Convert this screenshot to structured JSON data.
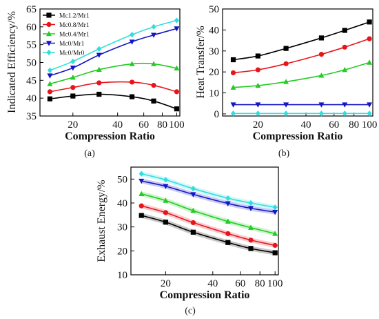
{
  "chart_data": [
    {
      "type": "line",
      "caption": "(a)",
      "xlabel": "Compression Ratio",
      "ylabel": "Indicated Efficiency/%",
      "xscale": "log",
      "xlim": [
        12,
        105
      ],
      "ylim": [
        35,
        65
      ],
      "xticks": [
        20,
        40,
        60,
        80,
        100
      ],
      "yticks": [
        35,
        40,
        45,
        50,
        55,
        60,
        65
      ],
      "legend_position": "top-left",
      "x": [
        14,
        20,
        30,
        50,
        70,
        100
      ],
      "series": [
        {
          "name": "Mc1.2/Mr1",
          "color": "#000000",
          "marker": "square",
          "values": [
            39.8,
            40.6,
            41.1,
            40.4,
            39.2,
            37.0
          ]
        },
        {
          "name": "Mc0.8/Mr1",
          "color": "#e8141b",
          "marker": "circle",
          "values": [
            41.8,
            43.0,
            44.3,
            44.5,
            43.6,
            41.8
          ]
        },
        {
          "name": "Mc0.4/Mr1",
          "color": "#22cc22",
          "marker": "triangle-up",
          "values": [
            44.0,
            45.8,
            48.0,
            49.6,
            49.6,
            48.4
          ]
        },
        {
          "name": "Mc0/Mr1",
          "color": "#1414c8",
          "marker": "triangle-down",
          "values": [
            46.3,
            48.5,
            52.1,
            55.8,
            57.7,
            59.5
          ]
        },
        {
          "name": "Mc0/Mr0",
          "color": "#33dddd",
          "marker": "diamond",
          "values": [
            47.8,
            50.3,
            53.8,
            57.8,
            60.0,
            61.8
          ]
        }
      ]
    },
    {
      "type": "line",
      "caption": "(b)",
      "xlabel": "Compression Ratio",
      "ylabel": "Heat Transfer/%",
      "xscale": "log",
      "xlim": [
        12,
        105
      ],
      "ylim": [
        -1,
        50
      ],
      "xticks": [
        20,
        40,
        60,
        80,
        100
      ],
      "yticks": [
        0,
        10,
        20,
        30,
        40,
        50
      ],
      "x": [
        14,
        20,
        30,
        50,
        70,
        100
      ],
      "series": [
        {
          "name": "Mc1.2/Mr1",
          "color": "#000000",
          "marker": "square",
          "values": [
            25.8,
            27.6,
            31.2,
            36.2,
            39.8,
            43.8
          ]
        },
        {
          "name": "Mc0.8/Mr1",
          "color": "#e8141b",
          "marker": "circle",
          "values": [
            19.6,
            21.0,
            23.9,
            28.4,
            31.8,
            35.8
          ]
        },
        {
          "name": "Mc0.4/Mr1",
          "color": "#22cc22",
          "marker": "triangle-up",
          "values": [
            12.6,
            13.5,
            15.3,
            18.3,
            21.0,
            24.5
          ]
        },
        {
          "name": "Mc0/Mr1",
          "color": "#1414c8",
          "marker": "triangle-down",
          "values": [
            4.4,
            4.4,
            4.4,
            4.4,
            4.4,
            4.4
          ]
        },
        {
          "name": "Mc0/Mr0",
          "color": "#33dddd",
          "marker": "diamond",
          "values": [
            0.2,
            0.2,
            0.2,
            0.2,
            0.2,
            0.2
          ]
        }
      ]
    },
    {
      "type": "line",
      "caption": "(c)",
      "xlabel": "Compression Ratio",
      "ylabel": "Exhaust Energy/%",
      "xscale": "log",
      "xlim": [
        12,
        105
      ],
      "ylim": [
        10,
        55
      ],
      "xticks": [
        20,
        40,
        60,
        80,
        100
      ],
      "yticks": [
        10,
        20,
        30,
        40,
        50
      ],
      "x": [
        14,
        20,
        30,
        50,
        70,
        100
      ],
      "series": [
        {
          "name": "Mc1.2/Mr1",
          "color": "#000000",
          "marker": "square",
          "values": [
            34.8,
            32.0,
            27.8,
            23.5,
            21.0,
            19.2
          ]
        },
        {
          "name": "Mc0.8/Mr1",
          "color": "#e8141b",
          "marker": "circle",
          "values": [
            38.8,
            36.0,
            31.8,
            27.2,
            24.5,
            22.3
          ]
        },
        {
          "name": "Mc0.4/Mr1",
          "color": "#22cc22",
          "marker": "triangle-up",
          "values": [
            43.8,
            41.0,
            36.8,
            32.3,
            29.7,
            27.2
          ]
        },
        {
          "name": "Mc0/Mr1",
          "color": "#1414c8",
          "marker": "triangle-down",
          "values": [
            49.2,
            47.0,
            43.6,
            39.8,
            37.8,
            36.2
          ]
        },
        {
          "name": "Mc0/Mr0",
          "color": "#33dddd",
          "marker": "diamond",
          "values": [
            52.2,
            49.7,
            46.0,
            42.0,
            40.0,
            38.2
          ]
        }
      ]
    }
  ]
}
